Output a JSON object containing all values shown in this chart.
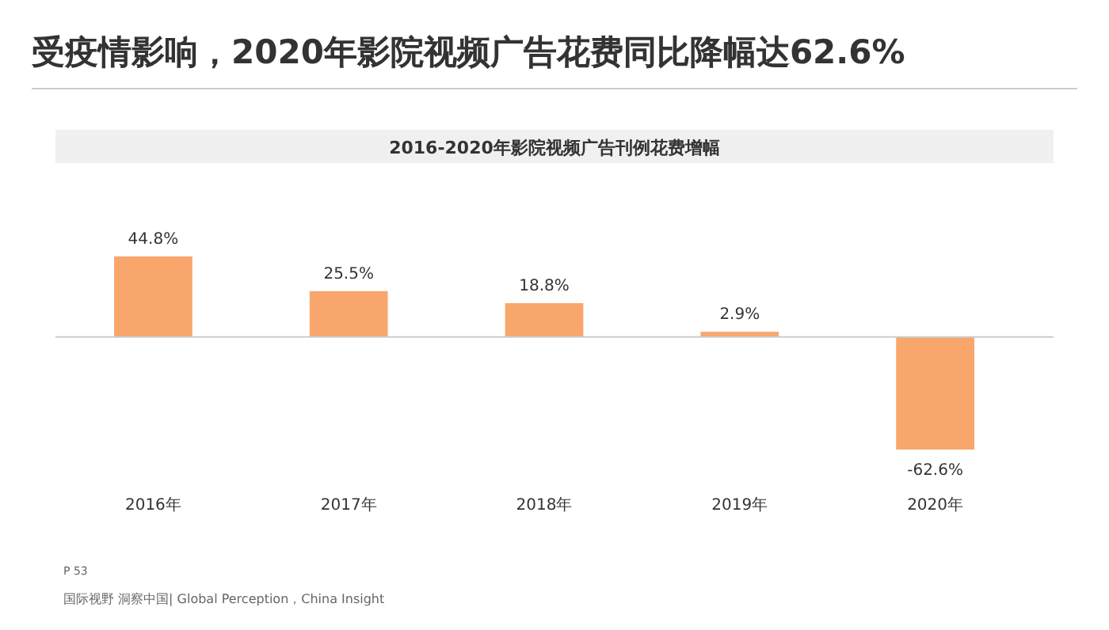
{
  "chart_data": {
    "type": "bar",
    "title": "受疫情影响，2020年影院视频广告花费同比降幅达62.6%",
    "subtitle": "2016-2020年影院视频广告刊例花费增幅",
    "categories": [
      "2016年",
      "2017年",
      "2018年",
      "2019年",
      "2020年"
    ],
    "values": [
      44.8,
      25.5,
      18.8,
      2.9,
      -62.6
    ],
    "value_labels": [
      "44.8%",
      "25.5%",
      "18.8%",
      "2.9%",
      "-62.6%"
    ],
    "color": "#f9a66c",
    "annotations": [
      "P 53",
      "国际视野 洞察中国| Global Perception，China Insight"
    ]
  }
}
